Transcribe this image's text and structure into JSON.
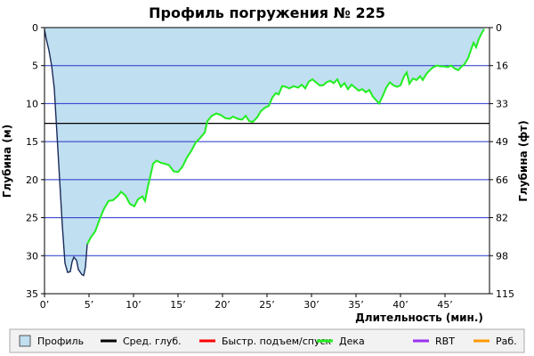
{
  "chart_data": {
    "type": "area",
    "title": "Профиль погружения № 225",
    "xlabel": "Длительность (мин.)",
    "ylabel_left": "Глубина (м)",
    "ylabel_right": "Глубина (фт)",
    "xlim": [
      0,
      50
    ],
    "ylim": [
      0,
      35
    ],
    "y_inverted": true,
    "x_ticks": [
      0,
      5,
      10,
      15,
      20,
      25,
      30,
      35,
      40,
      45
    ],
    "x_tick_labels": [
      "0’",
      "5’",
      "10’",
      "15’",
      "20’",
      "25’",
      "30’",
      "35’",
      "40’",
      "45’"
    ],
    "y_left_ticks": [
      0,
      5,
      10,
      15,
      20,
      25,
      30,
      35
    ],
    "y_left_tick_labels": [
      "0",
      "5",
      "10",
      "15",
      "20",
      "25",
      "30",
      "35"
    ],
    "y_right_ticks": [
      0,
      5,
      10,
      15,
      20,
      25,
      30,
      35
    ],
    "y_right_tick_labels": [
      "0",
      "16",
      "33",
      "49",
      "66",
      "82",
      "98",
      "115"
    ],
    "grid": "horizontal",
    "legend_position": "bottom",
    "avg_depth": 12.6,
    "series": [
      {
        "name": "Профиль",
        "kind": "area",
        "color": "#c0dff0",
        "points": [
          [
            0,
            0.3
          ],
          [
            0.2,
            1.5
          ],
          [
            0.5,
            3.0
          ],
          [
            0.8,
            5.0
          ],
          [
            1.1,
            8.0
          ],
          [
            1.4,
            14.0
          ],
          [
            1.7,
            20.0
          ],
          [
            2.0,
            26.0
          ],
          [
            2.3,
            31.0
          ],
          [
            2.6,
            32.2
          ],
          [
            2.9,
            32.1
          ],
          [
            3.1,
            30.8
          ],
          [
            3.3,
            30.2
          ],
          [
            3.6,
            30.6
          ],
          [
            3.8,
            31.8
          ],
          [
            4.2,
            32.5
          ],
          [
            4.4,
            32.6
          ],
          [
            4.6,
            31.5
          ],
          [
            4.8,
            28.5
          ],
          [
            5.2,
            27.6
          ],
          [
            5.7,
            26.8
          ],
          [
            6.2,
            25.2
          ],
          [
            6.7,
            23.8
          ],
          [
            7.2,
            22.8
          ],
          [
            7.7,
            22.7
          ],
          [
            8.2,
            22.2
          ],
          [
            8.6,
            21.6
          ],
          [
            9.1,
            22.1
          ],
          [
            9.6,
            23.2
          ],
          [
            10.1,
            23.5
          ],
          [
            10.5,
            22.6
          ],
          [
            11.0,
            22.2
          ],
          [
            11.3,
            22.8
          ],
          [
            11.6,
            21.0
          ],
          [
            11.9,
            19.5
          ],
          [
            12.2,
            17.9
          ],
          [
            12.6,
            17.5
          ],
          [
            13.1,
            17.8
          ],
          [
            13.5,
            17.9
          ],
          [
            14.0,
            18.1
          ],
          [
            14.5,
            18.9
          ],
          [
            15.0,
            19.0
          ],
          [
            15.5,
            18.3
          ],
          [
            16.0,
            17.1
          ],
          [
            16.5,
            16.2
          ],
          [
            17.0,
            15.1
          ],
          [
            17.5,
            14.5
          ],
          [
            18.0,
            13.8
          ],
          [
            18.3,
            12.3
          ],
          [
            18.8,
            11.6
          ],
          [
            19.3,
            11.3
          ],
          [
            19.8,
            11.5
          ],
          [
            20.3,
            11.9
          ],
          [
            20.8,
            12.0
          ],
          [
            21.2,
            11.7
          ],
          [
            21.7,
            12.0
          ],
          [
            22.2,
            12.1
          ],
          [
            22.6,
            11.6
          ],
          [
            23.0,
            12.3
          ],
          [
            23.4,
            12.4
          ],
          [
            23.9,
            11.8
          ],
          [
            24.3,
            11.0
          ],
          [
            24.8,
            10.5
          ],
          [
            25.2,
            10.3
          ],
          [
            25.6,
            9.2
          ],
          [
            26.0,
            8.6
          ],
          [
            26.3,
            8.8
          ],
          [
            26.7,
            7.7
          ],
          [
            27.1,
            7.8
          ],
          [
            27.5,
            8.0
          ],
          [
            28.0,
            7.7
          ],
          [
            28.5,
            7.9
          ],
          [
            28.9,
            7.5
          ],
          [
            29.3,
            8.0
          ],
          [
            29.7,
            7.1
          ],
          [
            30.1,
            6.8
          ],
          [
            30.5,
            7.2
          ],
          [
            30.9,
            7.6
          ],
          [
            31.3,
            7.6
          ],
          [
            31.7,
            7.2
          ],
          [
            32.1,
            7.0
          ],
          [
            32.5,
            7.3
          ],
          [
            32.9,
            6.8
          ],
          [
            33.3,
            7.8
          ],
          [
            33.7,
            7.3
          ],
          [
            34.1,
            8.1
          ],
          [
            34.5,
            7.5
          ],
          [
            34.9,
            7.9
          ],
          [
            35.3,
            8.3
          ],
          [
            35.7,
            8.1
          ],
          [
            36.1,
            8.5
          ],
          [
            36.5,
            8.2
          ],
          [
            36.9,
            9.1
          ],
          [
            37.3,
            9.6
          ],
          [
            37.6,
            10.0
          ],
          [
            38.0,
            9.0
          ],
          [
            38.4,
            7.9
          ],
          [
            38.8,
            7.2
          ],
          [
            39.2,
            7.6
          ],
          [
            39.6,
            7.8
          ],
          [
            40.0,
            7.6
          ],
          [
            40.4,
            6.4
          ],
          [
            40.7,
            5.9
          ],
          [
            41.0,
            7.4
          ],
          [
            41.4,
            6.7
          ],
          [
            41.8,
            6.9
          ],
          [
            42.2,
            6.4
          ],
          [
            42.5,
            6.9
          ],
          [
            42.9,
            6.1
          ],
          [
            43.3,
            5.6
          ],
          [
            43.7,
            5.2
          ],
          [
            44.1,
            5.0
          ],
          [
            44.5,
            5.1
          ],
          [
            44.9,
            5.1
          ],
          [
            45.3,
            5.2
          ],
          [
            45.7,
            5.0
          ],
          [
            46.1,
            5.4
          ],
          [
            46.5,
            5.6
          ],
          [
            46.8,
            5.2
          ],
          [
            47.2,
            4.8
          ],
          [
            47.6,
            4.0
          ],
          [
            47.9,
            3.0
          ],
          [
            48.2,
            2.0
          ],
          [
            48.5,
            2.6
          ],
          [
            48.8,
            1.5
          ],
          [
            49.1,
            0.8
          ],
          [
            49.4,
            0.2
          ]
        ]
      },
      {
        "name": "Сред. глуб.",
        "kind": "line",
        "color": "#000000"
      },
      {
        "name": "Быстр. подъем/спуск",
        "kind": "line",
        "color": "#ff0000"
      },
      {
        "name": "Дека",
        "kind": "line",
        "color": "#22ee22",
        "from_x": 4.8
      },
      {
        "name": "RBT",
        "kind": "line",
        "color": "#9933ee"
      },
      {
        "name": "Раб.",
        "kind": "line",
        "color": "#ff9900"
      }
    ]
  }
}
